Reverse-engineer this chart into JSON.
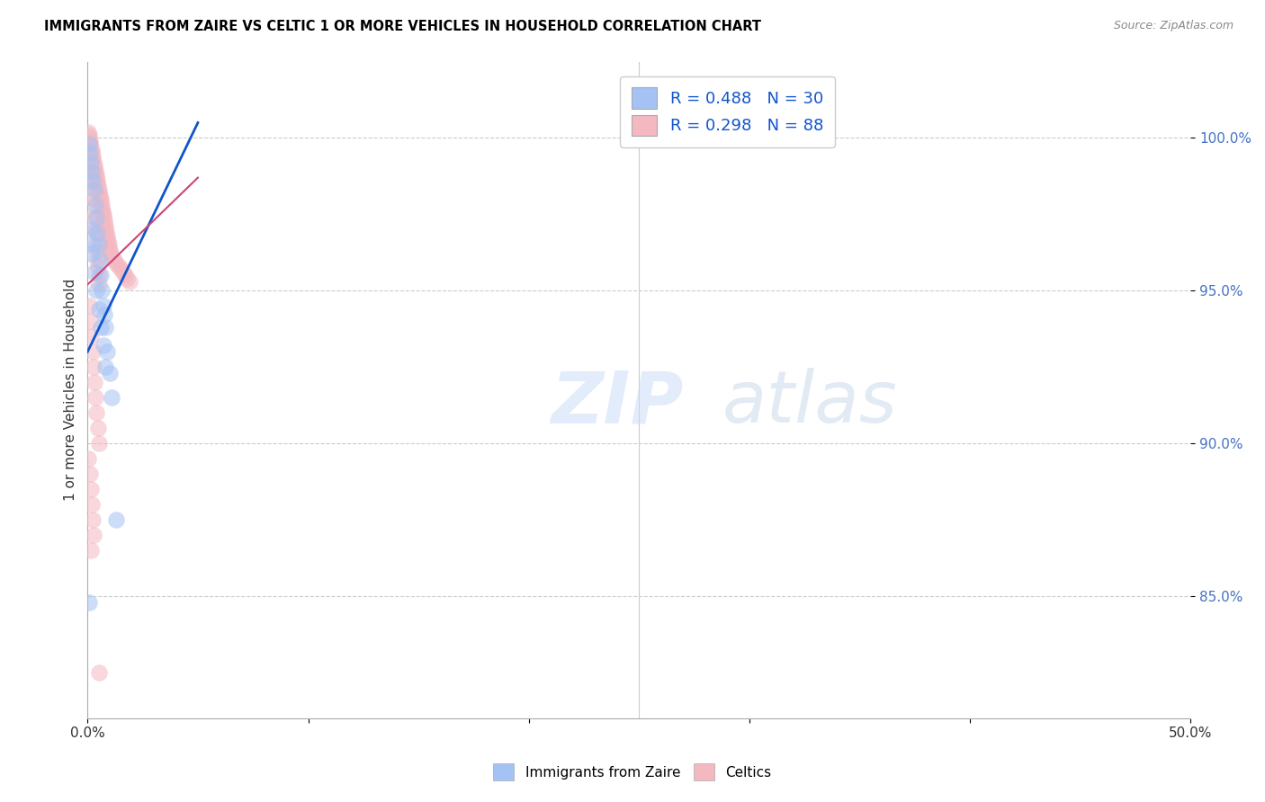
{
  "title": "IMMIGRANTS FROM ZAIRE VS CELTIC 1 OR MORE VEHICLES IN HOUSEHOLD CORRELATION CHART",
  "source": "Source: ZipAtlas.com",
  "ylabel": "1 or more Vehicles in Household",
  "yticks": [
    85.0,
    90.0,
    95.0,
    100.0
  ],
  "ytick_labels": [
    "85.0%",
    "90.0%",
    "95.0%",
    "100.0%"
  ],
  "xmin": 0.0,
  "xmax": 50.0,
  "ymin": 81.0,
  "ymax": 102.5,
  "r_blue": 0.488,
  "n_blue": 30,
  "r_pink": 0.298,
  "n_pink": 88,
  "blue_color": "#a4c2f4",
  "pink_color": "#f4b8c1",
  "blue_line_color": "#1155cc",
  "pink_line_color": "#cc4477",
  "legend_blue_label": "Immigrants from Zaire",
  "legend_pink_label": "Celtics",
  "blue_scatter_x": [
    0.05,
    0.1,
    0.15,
    0.2,
    0.25,
    0.3,
    0.35,
    0.4,
    0.45,
    0.5,
    0.55,
    0.6,
    0.65,
    0.7,
    0.75,
    0.8,
    0.9,
    1.0,
    1.1,
    1.3,
    0.2,
    0.3,
    0.4,
    0.5,
    0.6,
    0.7,
    0.8,
    0.15,
    0.25,
    0.05
  ],
  "blue_scatter_y": [
    99.8,
    99.5,
    99.2,
    98.9,
    98.6,
    98.3,
    97.8,
    97.4,
    96.9,
    96.5,
    96.0,
    95.5,
    95.0,
    94.5,
    94.2,
    93.8,
    93.0,
    92.3,
    91.5,
    87.5,
    96.2,
    95.6,
    95.0,
    94.4,
    93.8,
    93.2,
    92.5,
    97.0,
    96.5,
    84.8
  ],
  "pink_scatter_x": [
    0.02,
    0.05,
    0.08,
    0.1,
    0.12,
    0.15,
    0.18,
    0.2,
    0.22,
    0.25,
    0.28,
    0.3,
    0.32,
    0.35,
    0.38,
    0.4,
    0.42,
    0.45,
    0.48,
    0.5,
    0.52,
    0.55,
    0.58,
    0.6,
    0.62,
    0.65,
    0.68,
    0.7,
    0.72,
    0.75,
    0.78,
    0.8,
    0.82,
    0.85,
    0.88,
    0.9,
    0.92,
    0.95,
    0.98,
    1.0,
    1.05,
    1.1,
    1.2,
    1.3,
    1.4,
    1.5,
    1.6,
    1.7,
    1.8,
    1.9,
    0.05,
    0.1,
    0.15,
    0.2,
    0.25,
    0.3,
    0.35,
    0.4,
    0.45,
    0.5,
    0.08,
    0.12,
    0.18,
    0.22,
    0.28,
    0.32,
    0.38,
    0.42,
    0.48,
    0.52,
    0.06,
    0.11,
    0.16,
    0.21,
    0.26,
    0.31,
    0.36,
    0.41,
    0.46,
    0.51,
    0.04,
    0.09,
    0.14,
    0.19,
    0.24,
    0.29,
    0.15,
    0.5
  ],
  "pink_scatter_y": [
    100.2,
    100.1,
    100.0,
    99.9,
    99.8,
    99.7,
    99.6,
    99.5,
    99.4,
    99.3,
    99.2,
    99.1,
    99.0,
    98.9,
    98.8,
    98.7,
    98.6,
    98.5,
    98.4,
    98.3,
    98.2,
    98.1,
    98.0,
    97.9,
    97.8,
    97.7,
    97.6,
    97.5,
    97.4,
    97.3,
    97.2,
    97.1,
    97.0,
    96.9,
    96.8,
    96.7,
    96.6,
    96.5,
    96.4,
    96.3,
    96.2,
    96.1,
    96.0,
    95.9,
    95.8,
    95.7,
    95.6,
    95.5,
    95.4,
    95.3,
    99.5,
    99.2,
    98.9,
    98.5,
    98.0,
    97.5,
    97.0,
    96.5,
    96.0,
    95.5,
    99.8,
    99.5,
    99.0,
    98.5,
    98.0,
    97.4,
    96.9,
    96.3,
    95.8,
    95.2,
    94.5,
    94.0,
    93.5,
    93.0,
    92.5,
    92.0,
    91.5,
    91.0,
    90.5,
    90.0,
    89.5,
    89.0,
    88.5,
    88.0,
    87.5,
    87.0,
    86.5,
    82.5
  ]
}
